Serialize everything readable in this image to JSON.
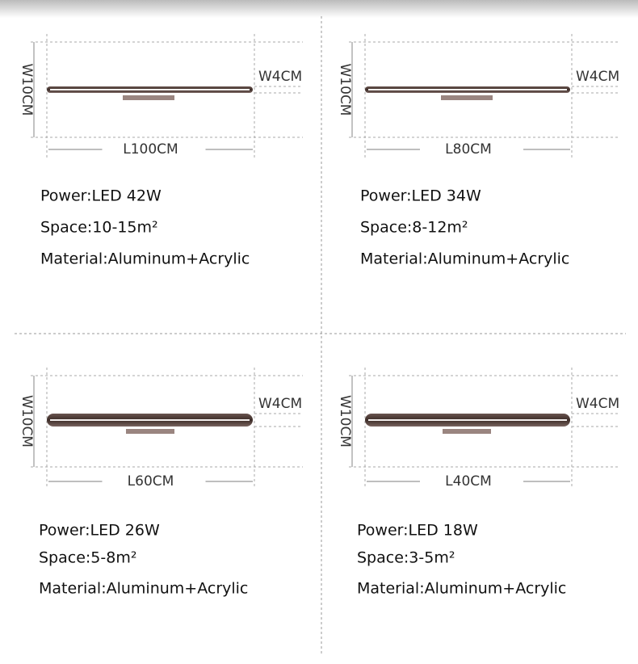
{
  "panels": [
    {
      "height_label": "W10CM",
      "width_label": "W4CM",
      "length_label": "L100CM",
      "power": "Power:LED 42W",
      "space": "Space:10-15m²",
      "material": "Material:Aluminum+Acrylic"
    },
    {
      "height_label": "W10CM",
      "width_label": "W4CM",
      "length_label": "L80CM",
      "power": "Power:LED 34W",
      "space": "Space:8-12m²",
      "material": "Material:Aluminum+Acrylic"
    },
    {
      "height_label": "W10CM",
      "width_label": "W4CM",
      "length_label": "L60CM",
      "power": "Power:LED 26W",
      "space": "Space:5-8m²",
      "material": "Material:Aluminum+Acrylic"
    },
    {
      "height_label": "W10CM",
      "width_label": "W4CM",
      "length_label": "L40CM",
      "power": "Power:LED 18W",
      "space": "Space:3-5m²",
      "material": "Material:Aluminum+Acrylic"
    }
  ]
}
